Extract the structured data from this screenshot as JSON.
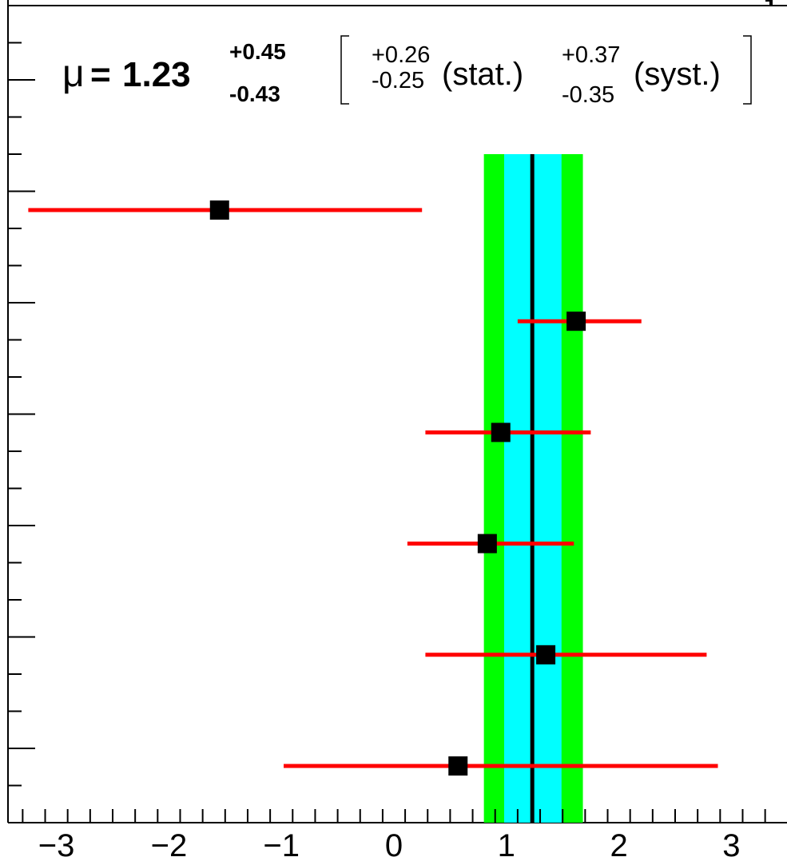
{
  "chart_data": {
    "type": "scatter",
    "title": "",
    "xlabel": "",
    "ylabel": "",
    "xlim": [
      -3.5,
      3.5
    ],
    "x_ticks": [
      "−3",
      "−2",
      "−1",
      "0",
      "1",
      "2",
      "3"
    ],
    "x_tick_values": [
      -3,
      -2,
      -1,
      0,
      1,
      2,
      3
    ],
    "combined": {
      "mu_symbol": "μ",
      "mu_eq": "=",
      "mu_value": "1.23",
      "mu_value_num": 1.23,
      "total_up": "+0.45",
      "total_down": "-0.43",
      "total_up_num": 0.45,
      "total_down_num": 0.43,
      "stat_up": "+0.26",
      "stat_down": "-0.25",
      "stat_up_num": 0.26,
      "stat_down_num": 0.25,
      "stat_label": "(stat.)",
      "syst_up": "+0.37",
      "syst_down": "-0.35",
      "syst_label": "(syst.)"
    },
    "points": [
      {
        "x": -1.55,
        "lo": -3.25,
        "hi": 0.25
      },
      {
        "x": 1.62,
        "lo": 1.1,
        "hi": 2.2
      },
      {
        "x": 0.95,
        "lo": 0.28,
        "hi": 1.75
      },
      {
        "x": 0.83,
        "lo": 0.12,
        "hi": 1.6
      },
      {
        "x": 1.35,
        "lo": 0.28,
        "hi": 2.78
      },
      {
        "x": 0.57,
        "lo": -0.98,
        "hi": 2.88
      }
    ],
    "colors": {
      "total_band": "#00ff00",
      "stat_band": "#00ffff",
      "central_line": "#000000",
      "error_bar": "#ff0000",
      "marker": "#000000"
    },
    "grid": false
  }
}
